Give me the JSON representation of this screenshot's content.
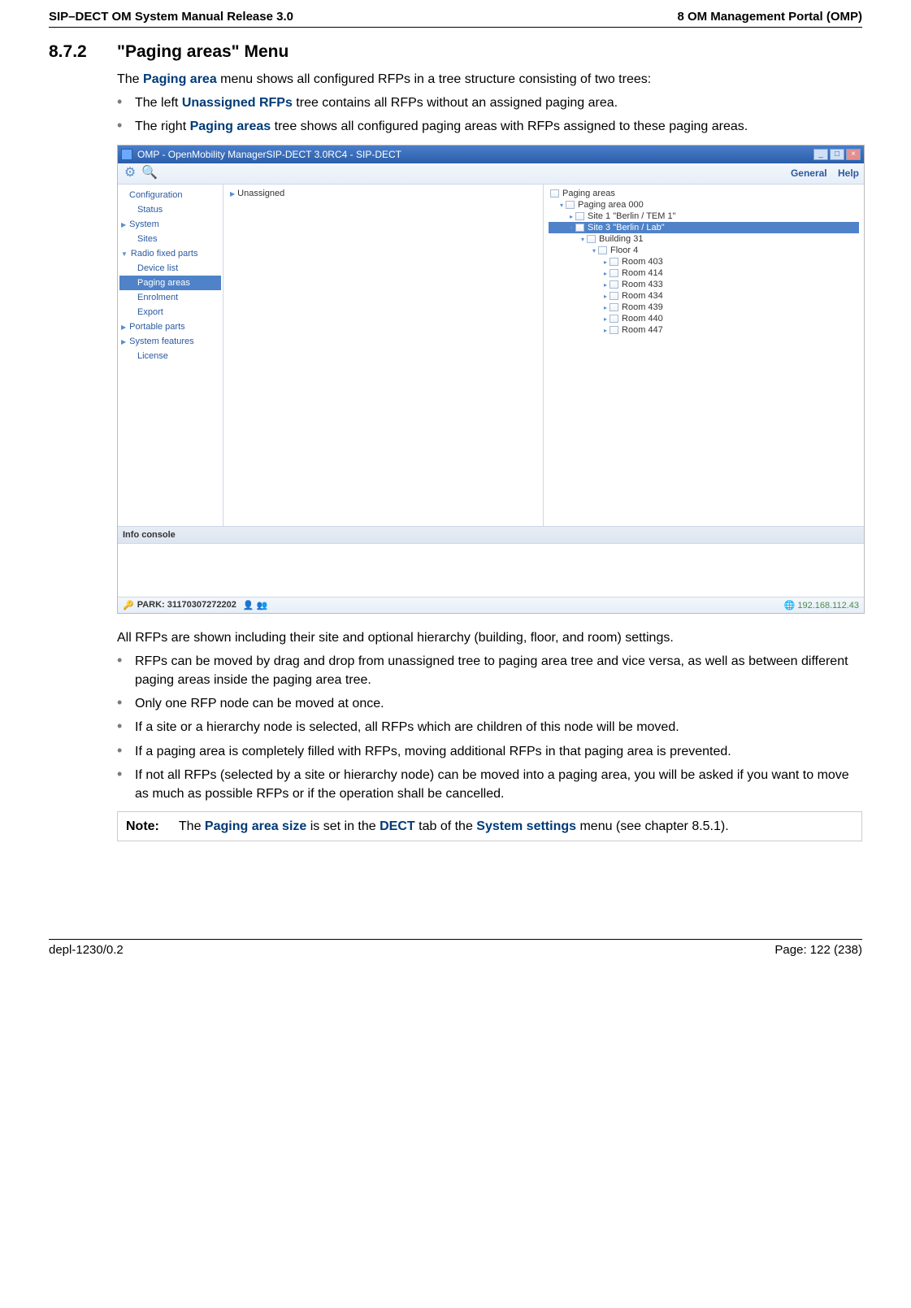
{
  "header": {
    "left": "SIP–DECT OM System Manual Release 3.0",
    "right": "8 OM Management Portal (OMP)"
  },
  "section": {
    "num": "8.7.2",
    "title": "\"Paging areas\" Menu"
  },
  "intro": {
    "p1_pre": "The ",
    "p1_link": "Paging area",
    "p1_post": " menu shows all configured RFPs in a tree structure consisting of two trees:",
    "b1_pre": "The left ",
    "b1_link": "Unassigned RFPs",
    "b1_post": " tree contains all RFPs without an assigned paging area.",
    "b2_pre": "The right ",
    "b2_link": "Paging areas",
    "b2_post": " tree shows all configured paging areas with RFPs assigned to these paging areas."
  },
  "omp": {
    "title": "OMP - OpenMobility ManagerSIP-DECT 3.0RC4 - SIP-DECT",
    "topright": {
      "general": "General",
      "help": "Help"
    },
    "nav": {
      "configuration": "Configuration",
      "status": "Status",
      "system": "System",
      "sites": "Sites",
      "rfp": "Radio fixed parts",
      "devicelist": "Device list",
      "pagingareas": "Paging areas",
      "enrolment": "Enrolment",
      "export": "Export",
      "portable": "Portable parts",
      "sysfeat": "System features",
      "license": "License"
    },
    "left_tree": {
      "root": "Unassigned"
    },
    "right_tree": {
      "root": "Paging areas",
      "area": "Paging area 000",
      "site1": "Site 1 \"Berlin / TEM 1\"",
      "site3": "Site 3 \"Berlin / Lab\"",
      "building": "Building 31",
      "floor": "Floor 4",
      "rooms": [
        "Room 403",
        "Room 414",
        "Room 433",
        "Room 434",
        "Room 439",
        "Room 440",
        "Room 447"
      ]
    },
    "info": "Info console",
    "status": {
      "park_label": "PARK: 31170307272202",
      "ip": "192.168.112.43"
    }
  },
  "after": {
    "p2": "All RFPs are shown including their site and optional hierarchy (building, floor, and room) settings.",
    "b3": "RFPs can be moved by drag and drop from unassigned tree to paging area tree and vice versa, as well as between different paging areas inside the paging area tree.",
    "b4": "Only one RFP node can be moved at once.",
    "b5": "If a site or a hierarchy node is selected, all RFPs which are children of this node will be moved.",
    "b6": "If a paging area is completely filled with RFPs, moving additional RFPs in that paging area is prevented.",
    "b7": "If not all RFPs (selected by a site or hierarchy node) can be moved into a paging area, you will be asked if you want to move as much as possible RFPs or if the operation shall be cancelled."
  },
  "note": {
    "label": "Note:",
    "pre": "The ",
    "l1": "Paging area size",
    "mid1": " is set in the ",
    "l2": "DECT",
    "mid2": " tab of the ",
    "l3": "System settings",
    "post": " menu (see chapter 8.5.1)."
  },
  "footer": {
    "left": "depl-1230/0.2",
    "right": "Page: 122 (238)"
  }
}
